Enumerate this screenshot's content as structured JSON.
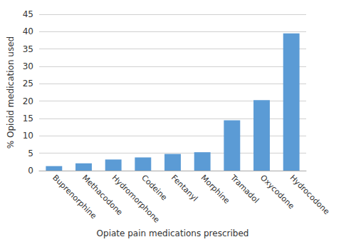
{
  "chart_data": {
    "type": "bar",
    "categories": [
      "Buprenorphine",
      "Methacodone",
      "Hydromorphone",
      "Codeine",
      "Fentanyl",
      "Morphine",
      "Tramadol",
      "Oxycodone",
      "Hydrocodone"
    ],
    "values": [
      1.3,
      2.1,
      3.2,
      3.8,
      4.8,
      5.3,
      14.5,
      20.3,
      39.5
    ],
    "color": "#5b9bd5",
    "xlabel": "Opiate pain medications prescribed",
    "ylabel": "% Opioid medication used",
    "ylim": [
      0,
      45
    ],
    "yticks": [
      0,
      5,
      10,
      15,
      20,
      25,
      30,
      35,
      40,
      45
    ],
    "grid": true
  }
}
